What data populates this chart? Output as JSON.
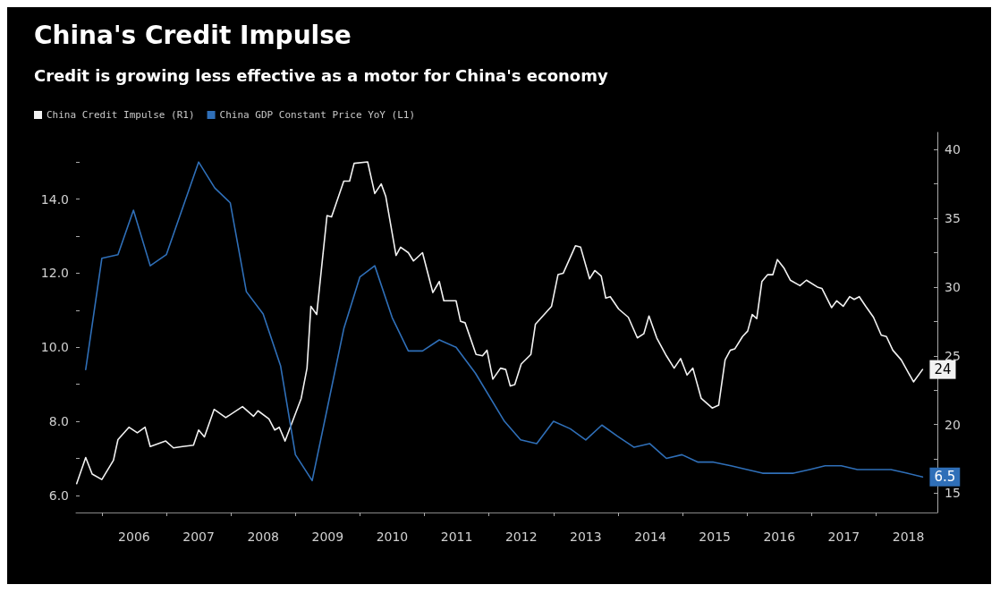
{
  "chart_data": {
    "type": "line",
    "title": "China's Credit Impulse",
    "subtitle": "Credit is growing less effective as a motor for China's economy",
    "legend": "top left",
    "marker": "none",
    "line_style": "solid",
    "xlim": [
      2005.6,
      2018.95
    ],
    "xticks": [
      {
        "value": 2006,
        "label": null
      },
      {
        "value": 2006.5,
        "label": "2006"
      },
      {
        "value": 2007,
        "label": null
      },
      {
        "value": 2007.5,
        "label": "2007"
      },
      {
        "value": 2008,
        "label": null
      },
      {
        "value": 2008.5,
        "label": "2008"
      },
      {
        "value": 2009,
        "label": null
      },
      {
        "value": 2009.5,
        "label": "2009"
      },
      {
        "value": 2010,
        "label": null
      },
      {
        "value": 2010.5,
        "label": "2010"
      },
      {
        "value": 2011,
        "label": null
      },
      {
        "value": 2011.5,
        "label": "2011"
      },
      {
        "value": 2012,
        "label": null
      },
      {
        "value": 2012.5,
        "label": "2012"
      },
      {
        "value": 2013,
        "label": null
      },
      {
        "value": 2013.5,
        "label": "2013"
      },
      {
        "value": 2014,
        "label": null
      },
      {
        "value": 2014.5,
        "label": "2014"
      },
      {
        "value": 2015,
        "label": null
      },
      {
        "value": 2015.5,
        "label": "2015"
      },
      {
        "value": 2016,
        "label": null
      },
      {
        "value": 2016.5,
        "label": "2016"
      },
      {
        "value": 2017,
        "label": null
      },
      {
        "value": 2017.5,
        "label": "2017"
      },
      {
        "value": 2018,
        "label": null
      },
      {
        "value": 2018.5,
        "label": "2018"
      }
    ],
    "ylim": [
      5.54,
      15.8
    ],
    "yticks": [
      {
        "value": 6,
        "label": "6.0"
      },
      {
        "value": 7,
        "label": null
      },
      {
        "value": 8,
        "label": "8.0"
      },
      {
        "value": 9,
        "label": null
      },
      {
        "value": 10,
        "label": "10.0"
      },
      {
        "value": 11,
        "label": null
      },
      {
        "value": 12,
        "label": "12.0"
      },
      {
        "value": 13,
        "label": null
      },
      {
        "value": 14,
        "label": "14.0"
      },
      {
        "value": 15,
        "label": null
      }
    ],
    "y2lim": [
      13.6,
      41.25
    ],
    "y2ticks": [
      15,
      {
        "value": 17.5,
        "label": null
      },
      20,
      {
        "value": 22.5,
        "label": null
      },
      25,
      {
        "value": 27.5,
        "label": null
      },
      30,
      {
        "value": 32.5,
        "label": null
      },
      35,
      {
        "value": 37.5,
        "label": null
      },
      40
    ],
    "series": [
      {
        "name": "China Credit Impulse (R1)",
        "color": "#f2f2f2",
        "axis": "y2",
        "x": [
          2005.61,
          2005.75,
          2005.85,
          2006.0,
          2006.18,
          2006.25,
          2006.42,
          2006.55,
          2006.67,
          2006.75,
          2006.99,
          2007.11,
          2007.25,
          2007.42,
          2007.5,
          2007.59,
          2007.74,
          2007.92,
          2008.18,
          2008.35,
          2008.42,
          2008.59,
          2008.68,
          2008.75,
          2008.84,
          2009.09,
          2009.18,
          2009.24,
          2009.33,
          2009.49,
          2009.56,
          2009.75,
          2009.84,
          2009.91,
          2010.12,
          2010.23,
          2010.33,
          2010.4,
          2010.56,
          2010.63,
          2010.75,
          2010.83,
          2010.97,
          2011.13,
          2011.23,
          2011.3,
          2011.49,
          2011.56,
          2011.63,
          2011.8,
          2011.9,
          2011.97,
          2012.06,
          2012.18,
          2012.26,
          2012.33,
          2012.4,
          2012.5,
          2012.65,
          2012.72,
          2012.97,
          2013.07,
          2013.15,
          2013.34,
          2013.42,
          2013.56,
          2013.64,
          2013.74,
          2013.81,
          2013.88,
          2014.01,
          2014.16,
          2014.3,
          2014.4,
          2014.48,
          2014.6,
          2014.75,
          2014.87,
          2014.97,
          2015.07,
          2015.16,
          2015.29,
          2015.46,
          2015.56,
          2015.66,
          2015.74,
          2015.81,
          2015.93,
          2016.01,
          2016.08,
          2016.15,
          2016.23,
          2016.32,
          2016.4,
          2016.47,
          2016.57,
          2016.67,
          2016.82,
          2016.92,
          2017.09,
          2017.16,
          2017.31,
          2017.39,
          2017.49,
          2017.59,
          2017.66,
          2017.74,
          2017.84,
          2017.96,
          2018.08,
          2018.16,
          2018.26,
          2018.39,
          2018.58,
          2018.72
        ],
        "values": [
          15.7,
          17.6,
          16.4,
          16.0,
          17.4,
          18.9,
          19.8,
          19.4,
          19.8,
          18.4,
          18.8,
          18.3,
          18.4,
          18.5,
          19.6,
          19.1,
          21.1,
          20.5,
          21.3,
          20.6,
          21.0,
          20.4,
          19.6,
          19.8,
          18.8,
          21.9,
          24.1,
          28.6,
          28.0,
          35.2,
          35.1,
          37.7,
          37.7,
          39.0,
          39.1,
          36.8,
          37.5,
          36.6,
          32.3,
          32.9,
          32.5,
          31.9,
          32.5,
          29.6,
          30.4,
          29.0,
          29.0,
          27.5,
          27.4,
          25.1,
          25.0,
          25.4,
          23.3,
          24.1,
          24.0,
          22.8,
          22.9,
          24.4,
          25.1,
          27.3,
          28.6,
          30.9,
          31.0,
          33.0,
          32.9,
          30.6,
          31.2,
          30.8,
          29.2,
          29.3,
          28.4,
          27.8,
          26.3,
          26.6,
          27.9,
          26.3,
          25.0,
          24.1,
          24.8,
          23.6,
          24.1,
          21.9,
          21.2,
          21.4,
          24.7,
          25.4,
          25.5,
          26.4,
          26.8,
          28.0,
          27.7,
          30.4,
          30.9,
          30.9,
          32.0,
          31.4,
          30.5,
          30.1,
          30.5,
          30.0,
          29.9,
          28.5,
          29.0,
          28.6,
          29.3,
          29.1,
          29.3,
          28.6,
          27.8,
          26.5,
          26.4,
          25.4,
          24.7,
          23.1,
          24
        ],
        "value_labels": [
          null,
          null,
          null,
          null,
          null,
          null,
          null,
          null,
          null,
          null,
          null,
          null,
          null,
          null,
          null,
          null,
          null,
          null,
          null,
          null,
          null,
          null,
          null,
          null,
          null,
          null,
          null,
          null,
          null,
          null,
          null,
          null,
          null,
          null,
          null,
          null,
          null,
          null,
          null,
          null,
          null,
          null,
          null,
          null,
          null,
          null,
          null,
          null,
          null,
          null,
          null,
          null,
          null,
          null,
          null,
          null,
          null,
          null,
          null,
          null,
          null,
          null,
          null,
          null,
          null,
          null,
          null,
          null,
          null,
          null,
          null,
          null,
          null,
          null,
          null,
          null,
          null,
          null,
          null,
          null,
          null,
          null,
          null,
          null,
          null,
          null,
          null,
          null,
          null,
          null,
          null,
          null,
          null,
          null,
          null,
          null,
          null,
          null,
          null,
          null,
          null,
          null,
          null,
          null,
          null,
          null,
          null,
          null,
          null,
          null,
          null,
          null,
          null,
          null,
          "24"
        ]
      },
      {
        "name": "China GDP Constant Price YoY (L1)",
        "color": "#2f6fb8",
        "x": [
          2005.75,
          2006.0,
          2006.25,
          2006.49,
          2006.75,
          2007.0,
          2007.5,
          2007.75,
          2007.99,
          2008.24,
          2008.5,
          2008.77,
          2009.0,
          2009.26,
          2009.5,
          2009.75,
          2010.0,
          2010.23,
          2010.5,
          2010.75,
          2010.97,
          2011.23,
          2011.49,
          2011.79,
          2012.24,
          2012.49,
          2012.74,
          2013.0,
          2013.26,
          2013.5,
          2013.75,
          2013.99,
          2014.25,
          2014.49,
          2014.75,
          2014.99,
          2015.24,
          2015.48,
          2015.75,
          2016.0,
          2016.24,
          2016.72,
          2016.97,
          2017.21,
          2017.46,
          2017.71,
          2018.23,
          2018.48,
          2018.72
        ],
        "values": [
          9.4,
          12.4,
          12.5,
          13.7,
          12.2,
          12.5,
          15.0,
          14.3,
          13.9,
          11.5,
          10.9,
          9.5,
          7.1,
          6.4,
          8.4,
          10.5,
          11.9,
          12.2,
          10.8,
          9.9,
          9.9,
          10.2,
          10.0,
          9.3,
          8.0,
          7.5,
          7.4,
          8.0,
          7.8,
          7.5,
          7.9,
          7.6,
          7.3,
          7.4,
          7.0,
          7.1,
          6.9,
          6.9,
          6.8,
          6.7,
          6.6,
          6.6,
          6.7,
          6.8,
          6.8,
          6.7,
          6.7,
          6.6,
          6.5
        ],
        "value_labels": [
          null,
          null,
          null,
          null,
          null,
          null,
          null,
          null,
          null,
          null,
          null,
          null,
          null,
          null,
          null,
          null,
          null,
          null,
          null,
          null,
          null,
          null,
          null,
          null,
          null,
          null,
          null,
          null,
          null,
          null,
          null,
          null,
          null,
          null,
          null,
          null,
          null,
          null,
          null,
          null,
          null,
          null,
          null,
          null,
          null,
          null,
          null,
          null,
          "6.5"
        ]
      }
    ]
  }
}
